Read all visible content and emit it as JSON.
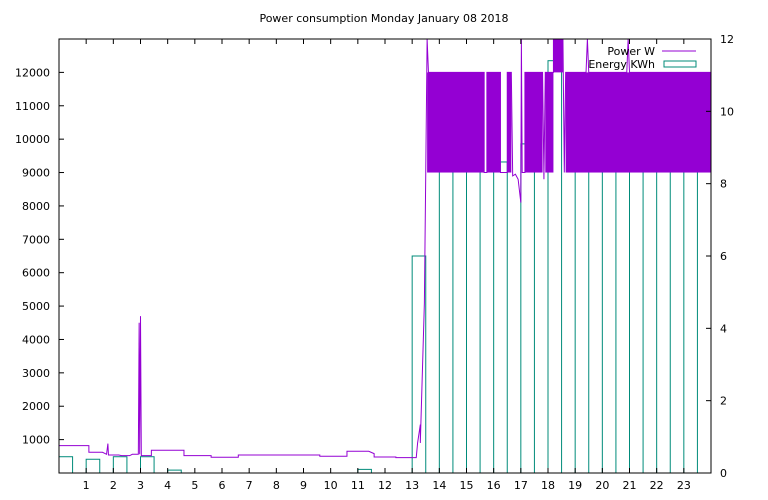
{
  "chart_data": {
    "type": "line",
    "title": "Power consumption Monday January 08 2018",
    "x_range": [
      0,
      24
    ],
    "y_range": [
      0,
      13000
    ],
    "y2_range": [
      0,
      12
    ],
    "x_ticks": [
      1,
      2,
      3,
      4,
      5,
      6,
      7,
      8,
      9,
      10,
      11,
      12,
      13,
      14,
      15,
      16,
      17,
      18,
      19,
      20,
      21,
      22,
      23
    ],
    "y_ticks": [
      1000,
      2000,
      3000,
      4000,
      5000,
      6000,
      7000,
      8000,
      9000,
      10000,
      11000,
      12000
    ],
    "y2_ticks": [
      0,
      2,
      4,
      6,
      8,
      10,
      12
    ],
    "grid": false,
    "legend_position": "top-right",
    "series": [
      {
        "name": "Power W",
        "type": "line",
        "axis": "y1",
        "color": "#9400d3",
        "points": [
          [
            0,
            820
          ],
          [
            1.1,
            820
          ],
          [
            1.1,
            620
          ],
          [
            1.6,
            620
          ],
          [
            1.75,
            560
          ],
          [
            1.8,
            880
          ],
          [
            1.82,
            540
          ],
          [
            2.2,
            540
          ],
          [
            2.3,
            520
          ],
          [
            2.6,
            520
          ],
          [
            2.7,
            560
          ],
          [
            2.92,
            560
          ],
          [
            2.95,
            4500
          ],
          [
            2.97,
            560
          ],
          [
            3.0,
            4700
          ],
          [
            3.03,
            520
          ],
          [
            3.4,
            520
          ],
          [
            3.4,
            680
          ],
          [
            4.6,
            680
          ],
          [
            4.6,
            520
          ],
          [
            5.6,
            520
          ],
          [
            5.6,
            470
          ],
          [
            6.6,
            470
          ],
          [
            6.6,
            540
          ],
          [
            9.6,
            540
          ],
          [
            9.6,
            500
          ],
          [
            10.6,
            500
          ],
          [
            10.6,
            650
          ],
          [
            11.4,
            650
          ],
          [
            11.6,
            580
          ],
          [
            11.6,
            480
          ],
          [
            12.4,
            480
          ],
          [
            12.4,
            460
          ],
          [
            13.15,
            460
          ],
          [
            13.2,
            900
          ],
          [
            13.3,
            1450
          ],
          [
            13.3,
            900
          ],
          [
            13.45,
            5100
          ],
          [
            13.5,
            9000
          ],
          [
            13.55,
            13000
          ],
          [
            13.6,
            12000
          ],
          [
            15.65,
            12000
          ],
          [
            15.65,
            9000
          ],
          [
            15.75,
            9000
          ],
          [
            15.75,
            12000
          ],
          [
            16.25,
            12000
          ],
          [
            16.25,
            9000
          ],
          [
            16.5,
            9000
          ],
          [
            16.5,
            12000
          ],
          [
            16.65,
            12000
          ],
          [
            16.7,
            8900
          ],
          [
            16.8,
            8950
          ],
          [
            16.9,
            8800
          ],
          [
            17.0,
            8100
          ],
          [
            17.02,
            13000
          ],
          [
            17.05,
            9000
          ],
          [
            17.15,
            9000
          ],
          [
            17.15,
            12000
          ],
          [
            17.8,
            12000
          ],
          [
            17.85,
            8800
          ],
          [
            17.9,
            12000
          ],
          [
            18.2,
            12000
          ],
          [
            18.2,
            13000
          ],
          [
            18.55,
            13000
          ],
          [
            18.6,
            9000
          ],
          [
            18.65,
            12000
          ],
          [
            19.4,
            12000
          ],
          [
            19.45,
            13000
          ],
          [
            19.5,
            12000
          ],
          [
            20.9,
            12000
          ],
          [
            20.95,
            13000
          ],
          [
            21.0,
            12000
          ],
          [
            24,
            12000
          ]
        ],
        "bands": [
          {
            "x": [
              13.55,
              15.65
            ],
            "y": [
              9000,
              12000
            ]
          },
          {
            "x": [
              15.75,
              16.25
            ],
            "y": [
              9000,
              12000
            ]
          },
          {
            "x": [
              16.5,
              16.65
            ],
            "y": [
              9000,
              12000
            ]
          },
          {
            "x": [
              17.15,
              17.8
            ],
            "y": [
              9000,
              12000
            ]
          },
          {
            "x": [
              17.9,
              18.2
            ],
            "y": [
              9000,
              12000
            ]
          },
          {
            "x": [
              18.2,
              18.55
            ],
            "y": [
              12000,
              13000
            ]
          },
          {
            "x": [
              18.65,
              24
            ],
            "y": [
              9000,
              12000
            ]
          }
        ]
      },
      {
        "name": "Energy KWh",
        "type": "bar",
        "axis": "y2",
        "color": "#008b7a",
        "bar_width": 0.5,
        "x": [
          0,
          1,
          2,
          3,
          4,
          5,
          6,
          7,
          8,
          9,
          10,
          11,
          12,
          13,
          14,
          15,
          16,
          17,
          18,
          19,
          20,
          21,
          22,
          23
        ],
        "values": [
          0.45,
          0.38,
          0.45,
          0.45,
          0.08,
          0,
          0,
          0,
          0,
          0,
          0,
          0.1,
          0,
          6.0,
          9.3,
          9.2,
          8.6,
          9.1,
          11.4,
          9.9,
          9.8,
          10.8,
          9.3,
          9.4
        ]
      }
    ]
  }
}
